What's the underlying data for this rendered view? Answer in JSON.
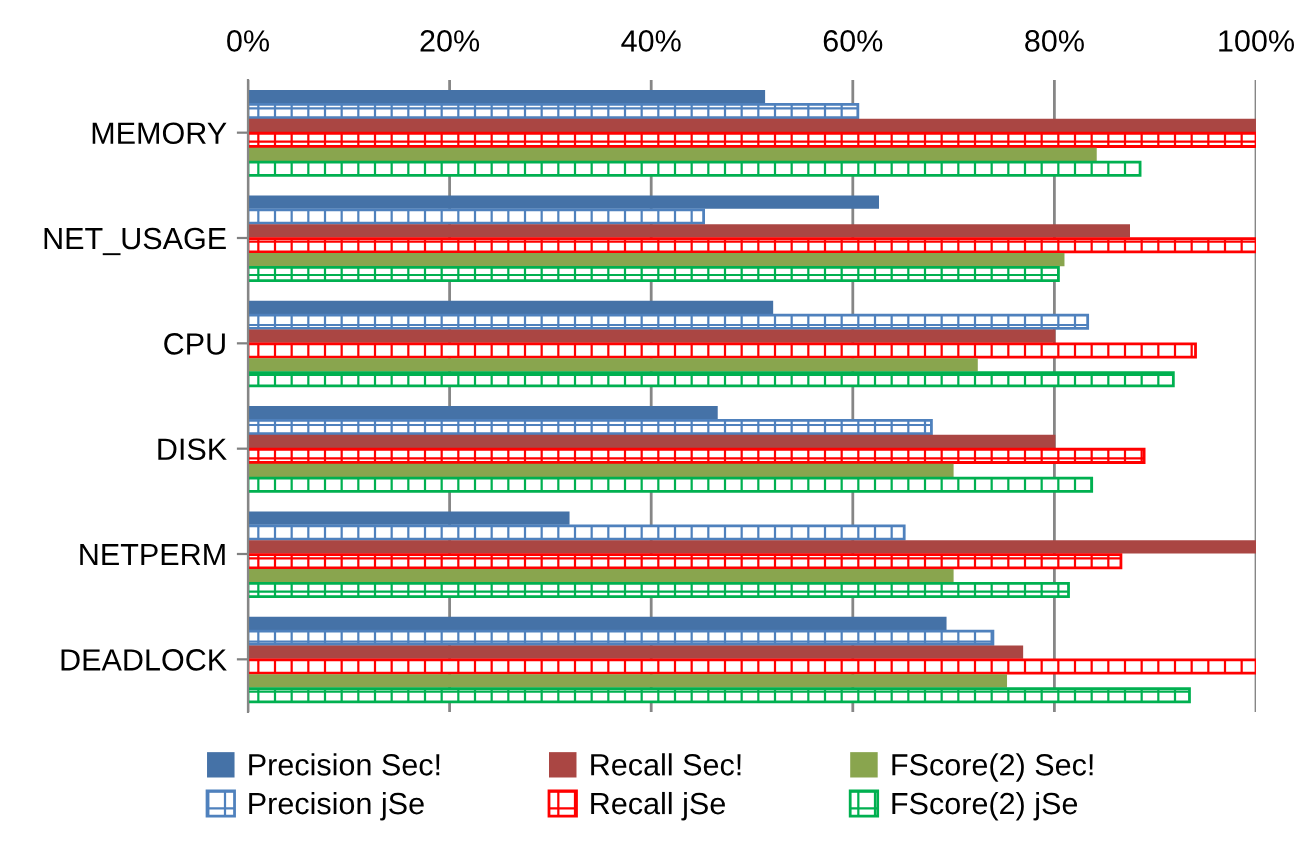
{
  "chart_data": {
    "type": "bar",
    "orientation": "horizontal",
    "categories": [
      "MEMORY",
      "NET_USAGE",
      "CPU",
      "DISK",
      "NETPERM",
      "DEADLOCK"
    ],
    "series": [
      {
        "name": "Precision Sec!",
        "color": "#4572a7",
        "values": [
          51.3,
          62.6,
          52.1,
          46.6,
          31.9,
          69.3
        ]
      },
      {
        "name": "Precision jSe",
        "color": "#4f81bd",
        "values": [
          60.5,
          45.2,
          83.3,
          67.8,
          65.1,
          73.9
        ]
      },
      {
        "name": "Recall Sec!",
        "color": "#aa4643",
        "values": [
          100,
          87.5,
          80.1,
          80.1,
          100,
          76.9
        ]
      },
      {
        "name": "Recall jSe",
        "color": "#ff0000",
        "values": [
          100,
          100,
          94.0,
          88.9,
          86.6,
          100
        ]
      },
      {
        "name": "FScore(2) Sec!",
        "color": "#89a54e",
        "values": [
          84.2,
          81.0,
          72.4,
          70.0,
          70.0,
          75.3
        ]
      },
      {
        "name": "FScore(2) jSe",
        "color": "#00b050",
        "values": [
          88.5,
          80.4,
          91.8,
          83.7,
          81.4,
          93.4
        ]
      }
    ],
    "xlim": [
      0,
      100
    ],
    "xticks": [
      {
        "value": 0,
        "label": "0%"
      },
      {
        "value": 20,
        "label": "20%"
      },
      {
        "value": 40,
        "label": "40%"
      },
      {
        "value": 60,
        "label": "60%"
      },
      {
        "value": 80,
        "label": "80%"
      },
      {
        "value": 100,
        "label": "100%"
      }
    ],
    "grid": "x",
    "legend": "bottom"
  }
}
